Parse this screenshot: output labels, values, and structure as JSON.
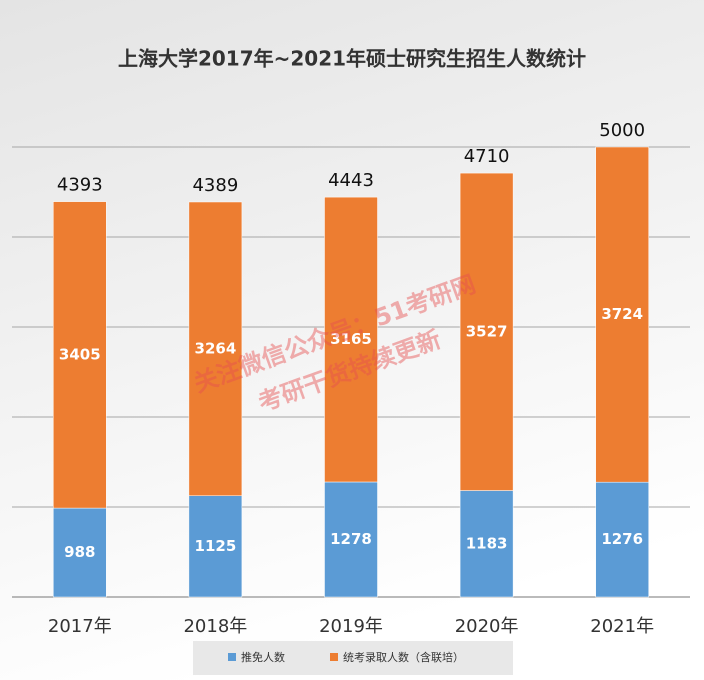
{
  "chart_data": {
    "type": "stacked_bar",
    "title": "上海大学2017年~2021年硕士研究生招生人数统计",
    "categories": [
      "2017年",
      "2018年",
      "2019年",
      "2020年",
      "2021年"
    ],
    "series": [
      {
        "name": "推免人数",
        "color": "#5b9bd5",
        "values": [
          988,
          1125,
          1278,
          1183,
          1276
        ]
      },
      {
        "name": "统考录取人数（含联培）",
        "color": "#ed7d31",
        "values": [
          3405,
          3264,
          3165,
          3527,
          3724
        ]
      }
    ],
    "totals": [
      4393,
      4389,
      4443,
      4710,
      5000
    ],
    "ylim": [
      0,
      5000
    ],
    "yticks": [
      0,
      1000,
      2000,
      3000,
      4000,
      5000
    ],
    "show_tick_labels": false,
    "grid": true,
    "legend": "bottom",
    "watermark": [
      "关注微信公众号：51考研网",
      "考研干货持续更新"
    ]
  }
}
